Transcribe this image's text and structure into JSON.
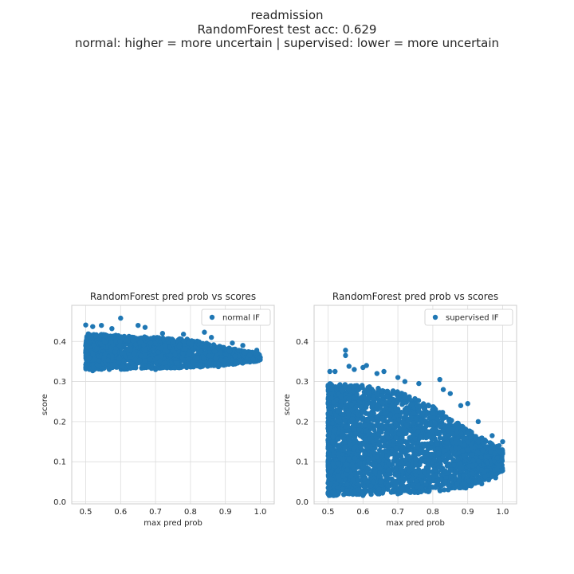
{
  "figure": {
    "title_lines": [
      "readmission",
      "RandomForest test acc: 0.629",
      "normal: higher = more uncertain | supervised: lower = more uncertain"
    ]
  },
  "chart_data": [
    {
      "type": "scatter",
      "title": "RandomForest pred prob vs scores",
      "xlabel": "max pred prob",
      "ylabel": "score",
      "xlim": [
        0.46,
        1.04
      ],
      "ylim": [
        -0.005,
        0.49
      ],
      "xticks": [
        0.5,
        0.6,
        0.7,
        0.8,
        0.9,
        1.0
      ],
      "yticks": [
        0.0,
        0.1,
        0.2,
        0.3,
        0.4
      ],
      "xtick_labels": [
        "0.5",
        "0.6",
        "0.7",
        "0.8",
        "0.9",
        "1.0"
      ],
      "ytick_labels": [
        "0.0",
        "0.1",
        "0.2",
        "0.3",
        "0.4"
      ],
      "grid": true,
      "legend_position": "top-right",
      "series": [
        {
          "name": "normal IF",
          "color": "#1f77b4",
          "band": [
            {
              "x": 0.5,
              "lower": 0.33,
              "upper": 0.42
            },
            {
              "x": 0.6,
              "lower": 0.33,
              "upper": 0.415
            },
            {
              "x": 0.7,
              "lower": 0.333,
              "upper": 0.41
            },
            {
              "x": 0.8,
              "lower": 0.335,
              "upper": 0.405
            },
            {
              "x": 0.9,
              "lower": 0.34,
              "upper": 0.385
            },
            {
              "x": 1.0,
              "lower": 0.352,
              "upper": 0.37
            }
          ],
          "points": [
            {
              "x": 0.6,
              "y": 0.458
            },
            {
              "x": 0.5,
              "y": 0.441
            },
            {
              "x": 0.52,
              "y": 0.437
            },
            {
              "x": 0.545,
              "y": 0.44
            },
            {
              "x": 0.575,
              "y": 0.432
            },
            {
              "x": 0.65,
              "y": 0.44
            },
            {
              "x": 0.67,
              "y": 0.435
            },
            {
              "x": 0.72,
              "y": 0.42
            },
            {
              "x": 0.78,
              "y": 0.418
            },
            {
              "x": 0.84,
              "y": 0.423
            },
            {
              "x": 0.86,
              "y": 0.41
            },
            {
              "x": 0.92,
              "y": 0.396
            },
            {
              "x": 0.95,
              "y": 0.39
            },
            {
              "x": 0.99,
              "y": 0.378
            },
            {
              "x": 1.0,
              "y": 0.36
            },
            {
              "x": 0.98,
              "y": 0.355
            },
            {
              "x": 0.93,
              "y": 0.345
            },
            {
              "x": 0.52,
              "y": 0.327
            },
            {
              "x": 0.7,
              "y": 0.33
            },
            {
              "x": 0.88,
              "y": 0.337
            }
          ]
        }
      ]
    },
    {
      "type": "scatter",
      "title": "RandomForest pred prob vs scores",
      "xlabel": "max pred prob",
      "ylabel": "score",
      "xlim": [
        0.46,
        1.04
      ],
      "ylim": [
        -0.005,
        0.49
      ],
      "xticks": [
        0.5,
        0.6,
        0.7,
        0.8,
        0.9,
        1.0
      ],
      "yticks": [
        0.0,
        0.1,
        0.2,
        0.3,
        0.4
      ],
      "xtick_labels": [
        "0.5",
        "0.6",
        "0.7",
        "0.8",
        "0.9",
        "1.0"
      ],
      "ytick_labels": [
        "0.0",
        "0.1",
        "0.2",
        "0.3",
        "0.4"
      ],
      "grid": true,
      "legend_position": "top-right",
      "series": [
        {
          "name": "supervised IF",
          "color": "#1f77b4",
          "band": [
            {
              "x": 0.5,
              "lower": 0.015,
              "upper": 0.295
            },
            {
              "x": 0.6,
              "lower": 0.018,
              "upper": 0.29
            },
            {
              "x": 0.7,
              "lower": 0.02,
              "upper": 0.275
            },
            {
              "x": 0.8,
              "lower": 0.025,
              "upper": 0.24
            },
            {
              "x": 0.9,
              "lower": 0.035,
              "upper": 0.18
            },
            {
              "x": 1.0,
              "lower": 0.075,
              "upper": 0.13
            }
          ],
          "points": [
            {
              "x": 0.55,
              "y": 0.378
            },
            {
              "x": 0.55,
              "y": 0.365
            },
            {
              "x": 0.56,
              "y": 0.338
            },
            {
              "x": 0.52,
              "y": 0.325
            },
            {
              "x": 0.505,
              "y": 0.325
            },
            {
              "x": 0.575,
              "y": 0.33
            },
            {
              "x": 0.6,
              "y": 0.335
            },
            {
              "x": 0.61,
              "y": 0.34
            },
            {
              "x": 0.64,
              "y": 0.32
            },
            {
              "x": 0.66,
              "y": 0.325
            },
            {
              "x": 0.7,
              "y": 0.31
            },
            {
              "x": 0.72,
              "y": 0.3
            },
            {
              "x": 0.76,
              "y": 0.295
            },
            {
              "x": 0.82,
              "y": 0.305
            },
            {
              "x": 0.83,
              "y": 0.28
            },
            {
              "x": 0.85,
              "y": 0.27
            },
            {
              "x": 0.88,
              "y": 0.24
            },
            {
              "x": 0.9,
              "y": 0.245
            },
            {
              "x": 0.93,
              "y": 0.2
            },
            {
              "x": 0.97,
              "y": 0.165
            },
            {
              "x": 0.99,
              "y": 0.14
            },
            {
              "x": 1.0,
              "y": 0.15
            },
            {
              "x": 1.0,
              "y": 0.12
            },
            {
              "x": 0.99,
              "y": 0.09
            },
            {
              "x": 1.0,
              "y": 0.078
            },
            {
              "x": 0.98,
              "y": 0.06
            },
            {
              "x": 0.96,
              "y": 0.055
            },
            {
              "x": 0.94,
              "y": 0.045
            },
            {
              "x": 0.91,
              "y": 0.04
            },
            {
              "x": 0.87,
              "y": 0.045
            },
            {
              "x": 0.82,
              "y": 0.03
            },
            {
              "x": 0.76,
              "y": 0.025
            },
            {
              "x": 0.7,
              "y": 0.02
            },
            {
              "x": 0.6,
              "y": 0.016
            },
            {
              "x": 0.52,
              "y": 0.018
            },
            {
              "x": 0.5,
              "y": 0.02
            }
          ]
        }
      ]
    }
  ]
}
